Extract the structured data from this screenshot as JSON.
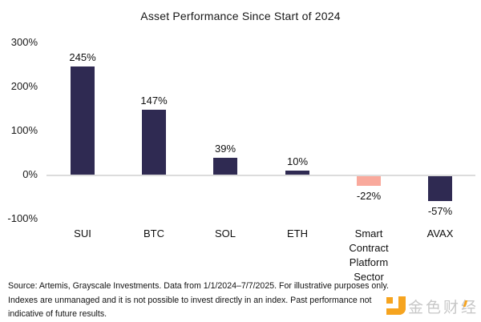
{
  "chart_data": {
    "type": "bar",
    "title": "Asset Performance Since Start of 2024",
    "categories": [
      "SUI",
      "BTC",
      "SOL",
      "ETH",
      "Smart Contract Platform Sector",
      "AVAX"
    ],
    "values": [
      245,
      147,
      39,
      10,
      -22,
      -57
    ],
    "value_labels": [
      "245%",
      "147%",
      "39%",
      "10%",
      "-22%",
      "-57%"
    ],
    "xlabel": "",
    "ylabel": "",
    "y_axis": {
      "tick_labels": [
        "300%",
        "200%",
        "100%",
        "0%",
        "-100%"
      ],
      "tick_values": [
        300,
        200,
        100,
        0,
        -100
      ],
      "range": [
        -100,
        300
      ]
    },
    "grid": false,
    "legend_position": "none",
    "colors": {
      "bar_default": "#2f2a52",
      "bar_highlight": "#f9a99c",
      "baseline": "#dcdcdc",
      "text": "#1b1b1b"
    },
    "bar_colors": [
      "#2f2a52",
      "#2f2a52",
      "#2f2a52",
      "#2f2a52",
      "#f9a99c",
      "#2f2a52"
    ]
  },
  "footer": {
    "lines": [
      "Source: Artemis, Grayscale Investments. Data from 1/1/2024–7/7/2025. For illustrative purposes only.",
      "Indexes are unmanaged and it is not possible to invest directly in an index. Past performance not",
      "indicative of future results."
    ]
  },
  "watermark": {
    "text": "金色财经",
    "logo_color": "#f6a41f"
  }
}
